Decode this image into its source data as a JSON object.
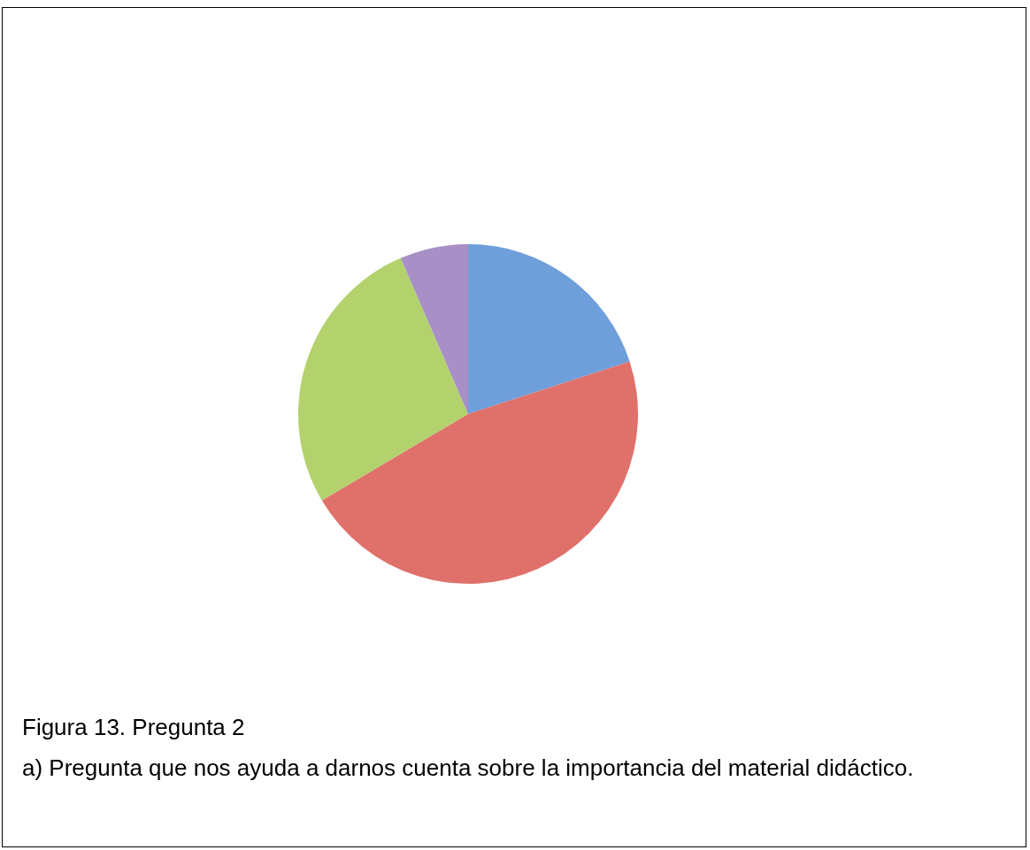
{
  "chart_data": {
    "type": "pie",
    "categories": [
      null,
      null,
      null,
      null
    ],
    "values": [
      20,
      46.5,
      27,
      6.5
    ],
    "colors": [
      "#6f9fdb",
      "#e0706a",
      "#b3d26e",
      "#a88fc6"
    ],
    "annotations": [
      "Figura 13. Pregunta 2",
      "a) Pregunta que nos ayuda a darnos cuenta sobre la importancia del material didáctico."
    ]
  }
}
